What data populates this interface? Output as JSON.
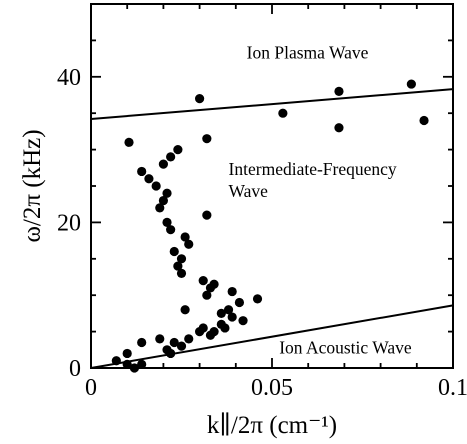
{
  "chart_data": {
    "type": "scatter",
    "title": "",
    "xlabel": "k∥/2π (cm⁻¹)",
    "ylabel": "ω/2π (kHz)",
    "xlim": [
      0,
      0.1
    ],
    "ylim": [
      0,
      50
    ],
    "x_ticks": [
      {
        "value": 0,
        "label": "0"
      },
      {
        "value": 0.05,
        "label": "0.05"
      },
      {
        "value": 0.1,
        "label": "0.1"
      }
    ],
    "y_ticks": [
      {
        "value": 0,
        "label": "0"
      },
      {
        "value": 20,
        "label": "20"
      },
      {
        "value": 40,
        "label": "40"
      }
    ],
    "x_minor_step": 0.01,
    "y_minor_step": 5,
    "grid": false,
    "series": [
      {
        "marker": "circle",
        "color": "#000000",
        "points": [
          [
            0.0105,
            31.0
          ],
          [
            0.03,
            37.0
          ],
          [
            0.032,
            31.5
          ],
          [
            0.053,
            35.0
          ],
          [
            0.0685,
            38.0
          ],
          [
            0.0685,
            33.0
          ],
          [
            0.0885,
            39.0
          ],
          [
            0.092,
            34.0
          ],
          [
            0.014,
            27.0
          ],
          [
            0.016,
            26.0
          ],
          [
            0.018,
            25.0
          ],
          [
            0.02,
            28.0
          ],
          [
            0.022,
            29.0
          ],
          [
            0.024,
            30.0
          ],
          [
            0.021,
            24.0
          ],
          [
            0.02,
            23.0
          ],
          [
            0.019,
            22.0
          ],
          [
            0.021,
            20.0
          ],
          [
            0.022,
            19.0
          ],
          [
            0.023,
            16.0
          ],
          [
            0.025,
            15.0
          ],
          [
            0.024,
            14.0
          ],
          [
            0.025,
            13.0
          ],
          [
            0.026,
            18.0
          ],
          [
            0.027,
            17.0
          ],
          [
            0.032,
            21.0
          ],
          [
            0.031,
            12.0
          ],
          [
            0.033,
            11.0
          ],
          [
            0.032,
            10.0
          ],
          [
            0.034,
            11.5
          ],
          [
            0.039,
            10.5
          ],
          [
            0.041,
            9.0
          ],
          [
            0.038,
            8.0
          ],
          [
            0.046,
            9.5
          ],
          [
            0.039,
            7.0
          ],
          [
            0.042,
            6.5
          ],
          [
            0.036,
            6.0
          ],
          [
            0.031,
            5.5
          ],
          [
            0.034,
            5.0
          ],
          [
            0.037,
            5.5
          ],
          [
            0.033,
            4.5
          ],
          [
            0.027,
            4.0
          ],
          [
            0.025,
            3.0
          ],
          [
            0.023,
            3.5
          ],
          [
            0.021,
            2.5
          ],
          [
            0.019,
            4.0
          ],
          [
            0.022,
            2.0
          ],
          [
            0.026,
            8.0
          ],
          [
            0.03,
            5.0
          ],
          [
            0.036,
            7.5
          ],
          [
            0.014,
            3.5
          ],
          [
            0.01,
            2.0
          ],
          [
            0.007,
            1.0
          ],
          [
            0.01,
            0.5
          ],
          [
            0.012,
            0.0
          ],
          [
            0.014,
            0.5
          ]
        ]
      }
    ],
    "lines": [
      {
        "label": "Ion Plasma Wave",
        "from": [
          0,
          34.2
        ],
        "to": [
          0.1,
          38.3
        ],
        "color": "#000000"
      },
      {
        "label": "Ion Acoustic Wave",
        "from": [
          0,
          0
        ],
        "to": [
          0.1,
          8.6
        ],
        "color": "#000000"
      }
    ],
    "annotations": [
      {
        "id": "ion-plasma",
        "lines": [
          "Ion Plasma Wave"
        ],
        "x": 0.043,
        "y": 42.5
      },
      {
        "id": "intermediate",
        "lines": [
          "Intermediate-Frequency",
          "Wave"
        ],
        "x": 0.038,
        "y": 26.5
      },
      {
        "id": "ion-acoustic",
        "lines": [
          "Ion Acoustic Wave"
        ],
        "x": 0.052,
        "y": 2.0
      }
    ]
  }
}
